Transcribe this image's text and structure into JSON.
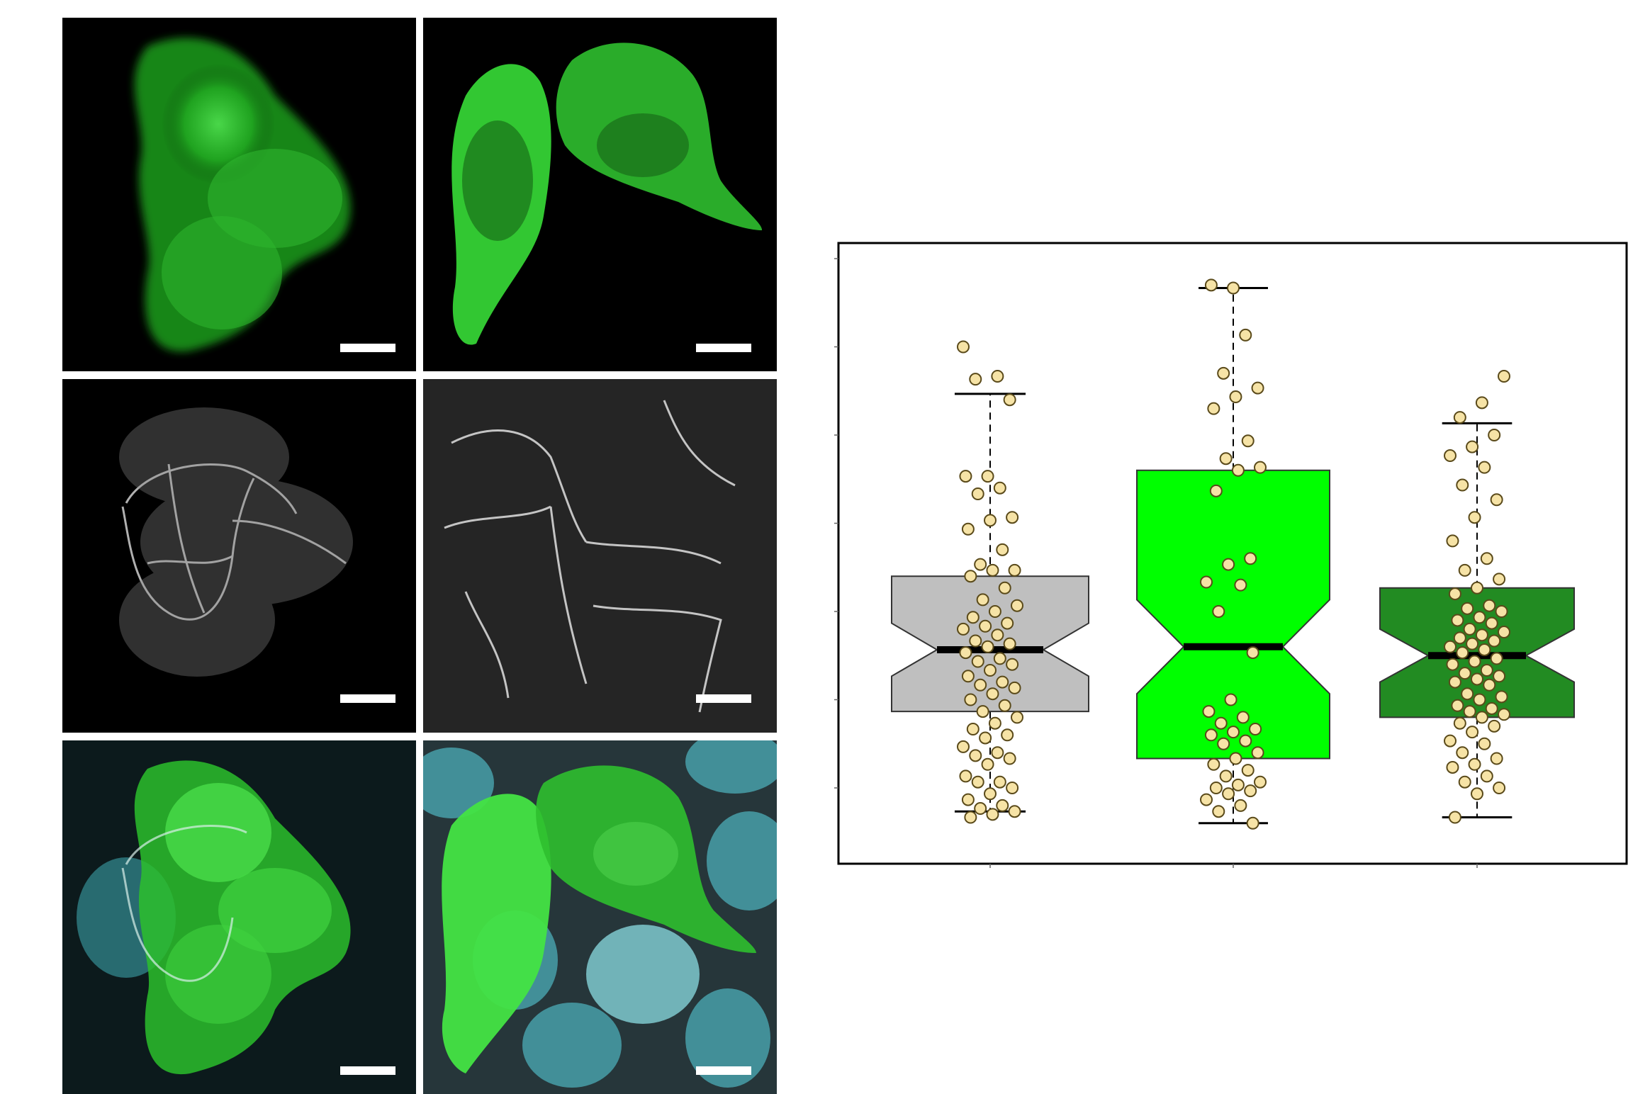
{
  "figure": {
    "panels": [
      {
        "id": "r1c1",
        "channel": "green",
        "scale_bar": true
      },
      {
        "id": "r1c2",
        "channel": "green",
        "scale_bar": true
      },
      {
        "id": "r2c1",
        "channel": "gray",
        "scale_bar": true
      },
      {
        "id": "r2c2",
        "channel": "gray",
        "scale_bar": true
      },
      {
        "id": "r3c1",
        "channel": "merge",
        "scale_bar": true
      },
      {
        "id": "r3c2",
        "channel": "merge",
        "scale_bar": true
      }
    ],
    "colors": {
      "green_channel": "#2fd12f",
      "gray_channel": "#d0d0d0",
      "cyan_channel": "#3aa7b3",
      "panel_background": "#000000"
    }
  },
  "chart_data": {
    "type": "box",
    "notched": true,
    "grid": false,
    "legend": "none",
    "ylim": [
      0,
      100
    ],
    "categories": [
      "",
      "",
      ""
    ],
    "colors": {
      "box_1": "#bfbfbf",
      "box_2": "#00ff00",
      "box_3": "#228b22",
      "points": "#f6e3a6",
      "median": "#000000"
    },
    "boxes": [
      {
        "whisker_low": 6,
        "q1": 23,
        "median": 33.5,
        "q3": 46,
        "whisker_high": 77,
        "notch_low": 29,
        "notch_high": 38,
        "points": [
          85,
          80,
          79.5,
          76,
          63,
          63,
          61,
          60,
          56,
          55.5,
          54,
          50.5,
          48,
          47,
          47,
          46,
          44,
          42,
          41,
          40,
          39,
          38,
          37.5,
          37,
          36,
          35,
          34.5,
          34,
          33,
          32,
          31.5,
          31,
          30,
          29,
          28,
          27.5,
          27,
          26,
          25,
          24,
          23,
          22,
          21,
          20,
          19,
          18.5,
          17,
          16,
          15.5,
          15,
          14,
          12,
          11,
          11,
          10,
          9,
          8,
          7,
          6.5,
          6,
          5.5,
          5
        ]
      },
      {
        "whisker_low": 4,
        "q1": 15,
        "median": 34,
        "q3": 64,
        "whisker_high": 95,
        "notch_low": 26,
        "notch_high": 42,
        "points": [
          95,
          95.5,
          87,
          80.5,
          78,
          76.5,
          74.5,
          69,
          66,
          64.5,
          64,
          60.5,
          49,
          48,
          45,
          44.5,
          40,
          33,
          25,
          23,
          22,
          21,
          20,
          19.5,
          19,
          18,
          17.5,
          16,
          15,
          14,
          13,
          12,
          11,
          10.5,
          10,
          9.5,
          9,
          8,
          7,
          6,
          4
        ]
      },
      {
        "whisker_low": 5,
        "q1": 22,
        "median": 32.5,
        "q3": 44,
        "whisker_high": 72,
        "notch_low": 28,
        "notch_high": 37,
        "points": [
          80,
          75.5,
          73,
          70,
          68,
          66.5,
          64.5,
          61.5,
          59,
          56,
          52,
          49,
          47,
          45.5,
          44,
          43,
          41,
          40.5,
          40,
          39,
          38.5,
          38,
          37,
          36.5,
          36,
          35.5,
          35,
          34.5,
          34,
          33.5,
          33,
          32,
          31.5,
          31,
          30,
          29.5,
          29,
          28.5,
          28,
          27.5,
          26,
          25.5,
          25,
          24,
          23.5,
          23,
          22.5,
          22,
          21,
          20.5,
          19.5,
          18,
          17.5,
          16,
          15,
          14,
          13.5,
          12,
          11,
          10,
          9,
          5
        ]
      }
    ]
  }
}
